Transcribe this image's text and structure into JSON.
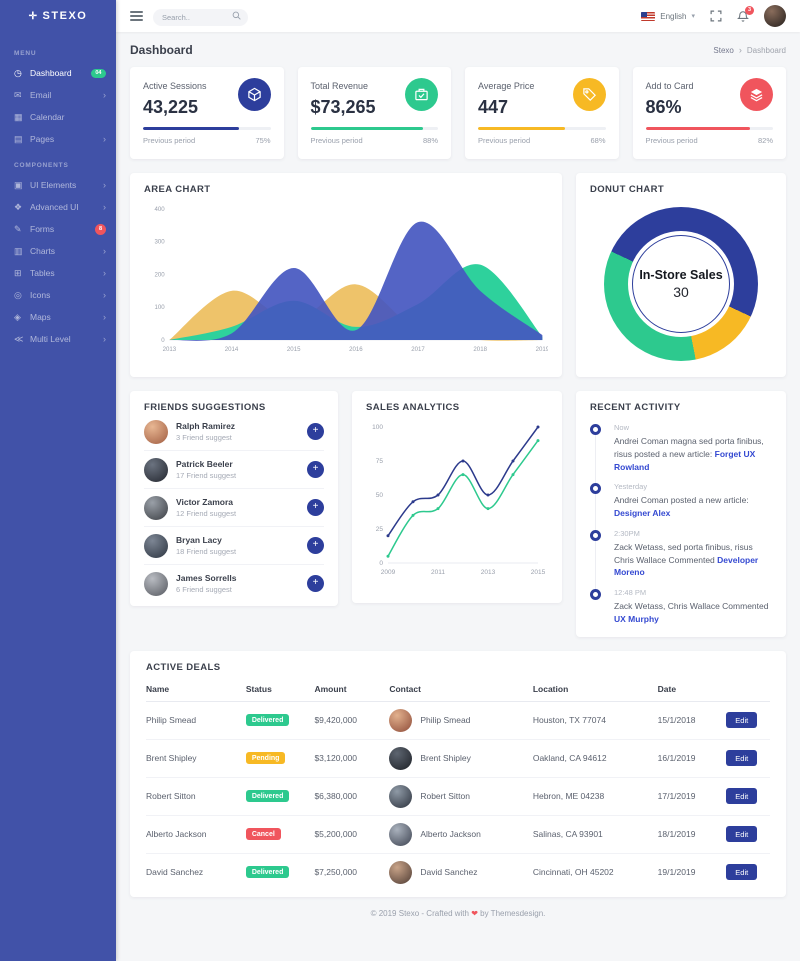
{
  "brand": {
    "name": "STEXO",
    "icon": "compass-icon"
  },
  "topbar": {
    "search_placeholder": "Search..",
    "language": "English",
    "flag_icon": "us-flag-icon",
    "notification_count": "3"
  },
  "page": {
    "title": "Dashboard",
    "breadcrumb_home": "Stexo",
    "breadcrumb_current": "Dashboard"
  },
  "sidebar": {
    "sections": [
      {
        "label": "MENU",
        "items": [
          {
            "label": "Dashboard",
            "icon": "speedometer-icon",
            "active": true,
            "badge": "04",
            "badge_style": "pill"
          },
          {
            "label": "Email",
            "icon": "envelope-icon",
            "arrow": true
          },
          {
            "label": "Calendar",
            "icon": "calendar-icon"
          },
          {
            "label": "Pages",
            "icon": "pages-icon",
            "arrow": true
          }
        ]
      },
      {
        "label": "COMPONENTS",
        "items": [
          {
            "label": "UI Elements",
            "icon": "ui-elements-icon",
            "arrow": true
          },
          {
            "label": "Advanced UI",
            "icon": "advanced-ui-icon",
            "arrow": true
          },
          {
            "label": "Forms",
            "icon": "forms-icon",
            "badge": "8",
            "badge_style": "round"
          },
          {
            "label": "Charts",
            "icon": "charts-icon",
            "arrow": true
          },
          {
            "label": "Tables",
            "icon": "tables-icon",
            "arrow": true
          },
          {
            "label": "Icons",
            "icon": "icons-icon",
            "arrow": true
          },
          {
            "label": "Maps",
            "icon": "maps-icon",
            "arrow": true
          },
          {
            "label": "Multi Level",
            "icon": "multi-level-icon",
            "arrow": true
          }
        ]
      }
    ]
  },
  "stats": [
    {
      "label": "Active Sessions",
      "value": "43,225",
      "icon": "cube-icon",
      "color": "#2d3e9c",
      "period_label": "Previous period",
      "percent": "75%",
      "bar_pct": 75
    },
    {
      "label": "Total Revenue",
      "value": "$73,265",
      "icon": "briefcase-icon",
      "color": "#2dc98e",
      "period_label": "Previous period",
      "percent": "88%",
      "bar_pct": 88
    },
    {
      "label": "Average Price",
      "value": "447",
      "icon": "tag-icon",
      "color": "#f7b924",
      "period_label": "Previous period",
      "percent": "68%",
      "bar_pct": 68
    },
    {
      "label": "Add to Card",
      "value": "86%",
      "icon": "layers-icon",
      "color": "#f0555d",
      "period_label": "Previous period",
      "percent": "82%",
      "bar_pct": 82
    }
  ],
  "chart_data": [
    {
      "type": "area",
      "title": "AREA CHART",
      "x": [
        2013,
        2014,
        2015,
        2016,
        2017,
        2018,
        2019
      ],
      "ylim": [
        0,
        400
      ],
      "yticks": [
        0,
        100,
        200,
        300,
        400
      ],
      "grid": false,
      "series": [
        {
          "name": "orange",
          "color": "#eec36a",
          "opacity": 1,
          "values": [
            0,
            150,
            60,
            170,
            30,
            0,
            0
          ]
        },
        {
          "name": "green",
          "color": "#2ed19c",
          "opacity": 1,
          "values": [
            0,
            40,
            120,
            40,
            110,
            230,
            10
          ]
        },
        {
          "name": "indigo",
          "color": "#4557c0",
          "opacity": 0.92,
          "values": [
            0,
            20,
            220,
            30,
            360,
            150,
            15
          ]
        }
      ]
    },
    {
      "type": "pie",
      "title": "DONUT CHART",
      "center_label": "In-Store Sales",
      "center_value": "30",
      "start_angle": -65,
      "segments": [
        {
          "name": "indigo",
          "color": "#2d3e9c",
          "pct": 50
        },
        {
          "name": "yellow",
          "color": "#f7b924",
          "pct": 15
        },
        {
          "name": "green",
          "color": "#2dc98e",
          "pct": 35
        }
      ]
    },
    {
      "type": "line",
      "title": "SALES ANALYTICS",
      "x": [
        2009,
        2010,
        2011,
        2012,
        2013,
        2014,
        2015
      ],
      "xticks": [
        2009,
        2011,
        2013,
        2015
      ],
      "ylim": [
        0,
        100
      ],
      "yticks": [
        0,
        25,
        50,
        75,
        100
      ],
      "grid": false,
      "series": [
        {
          "name": "navy",
          "color": "#2c3a8c",
          "values": [
            20,
            45,
            50,
            75,
            50,
            75,
            100
          ],
          "markers": true
        },
        {
          "name": "green",
          "color": "#2dc98e",
          "values": [
            5,
            35,
            40,
            65,
            40,
            65,
            90
          ],
          "markers": true
        }
      ]
    }
  ],
  "friends": {
    "title": "FRIENDS SUGGESTIONS",
    "items": [
      {
        "name": "Ralph Ramirez",
        "sub": "3 Friend suggest"
      },
      {
        "name": "Patrick Beeler",
        "sub": "17 Friend suggest"
      },
      {
        "name": "Victor Zamora",
        "sub": "12 Friend suggest"
      },
      {
        "name": "Bryan Lacy",
        "sub": "18 Friend suggest"
      },
      {
        "name": "James Sorrells",
        "sub": "6 Friend suggest"
      }
    ]
  },
  "activity": {
    "title": "RECENT ACTIVITY",
    "items": [
      {
        "time": "Now",
        "text": "Andrei Coman magna sed porta finibus, risus posted a new article:",
        "link": "Forget UX Rowland"
      },
      {
        "time": "Yesterday",
        "text": "Andrei Coman posted a new article:",
        "link": "Designer Alex"
      },
      {
        "time": "2:30PM",
        "text": "Zack Wetass, sed porta finibus, risus Chris Wallace Commented",
        "link": "Developer Moreno"
      },
      {
        "time": "12:48 PM",
        "text": "Zack Wetass, Chris Wallace Commented",
        "link": "UX Murphy"
      }
    ]
  },
  "deals": {
    "title": "ACTIVE DEALS",
    "headers": [
      "Name",
      "Status",
      "Amount",
      "Contact",
      "Location",
      "Date"
    ],
    "rows": [
      {
        "name": "Philip Smead",
        "status": "Delivered",
        "status_color": "#2dc98e",
        "amount": "$9,420,000",
        "contact": "Philip Smead",
        "location": "Houston, TX 77074",
        "date": "15/1/2018",
        "action": "Edit"
      },
      {
        "name": "Brent Shipley",
        "status": "Pending",
        "status_color": "#f7b924",
        "amount": "$3,120,000",
        "contact": "Brent Shipley",
        "location": "Oakland, CA 94612",
        "date": "16/1/2019",
        "action": "Edit"
      },
      {
        "name": "Robert Sitton",
        "status": "Delivered",
        "status_color": "#2dc98e",
        "amount": "$6,380,000",
        "contact": "Robert Sitton",
        "location": "Hebron, ME 04238",
        "date": "17/1/2019",
        "action": "Edit"
      },
      {
        "name": "Alberto Jackson",
        "status": "Cancel",
        "status_color": "#f0555d",
        "amount": "$5,200,000",
        "contact": "Alberto Jackson",
        "location": "Salinas, CA 93901",
        "date": "18/1/2019",
        "action": "Edit"
      },
      {
        "name": "David Sanchez",
        "status": "Delivered",
        "status_color": "#2dc98e",
        "amount": "$7,250,000",
        "contact": "David Sanchez",
        "location": "Cincinnati, OH 45202",
        "date": "19/1/2019",
        "action": "Edit"
      }
    ]
  },
  "footer": {
    "text_before": "© 2019 Stexo - Crafted with",
    "text_after": "by Themesdesign."
  }
}
